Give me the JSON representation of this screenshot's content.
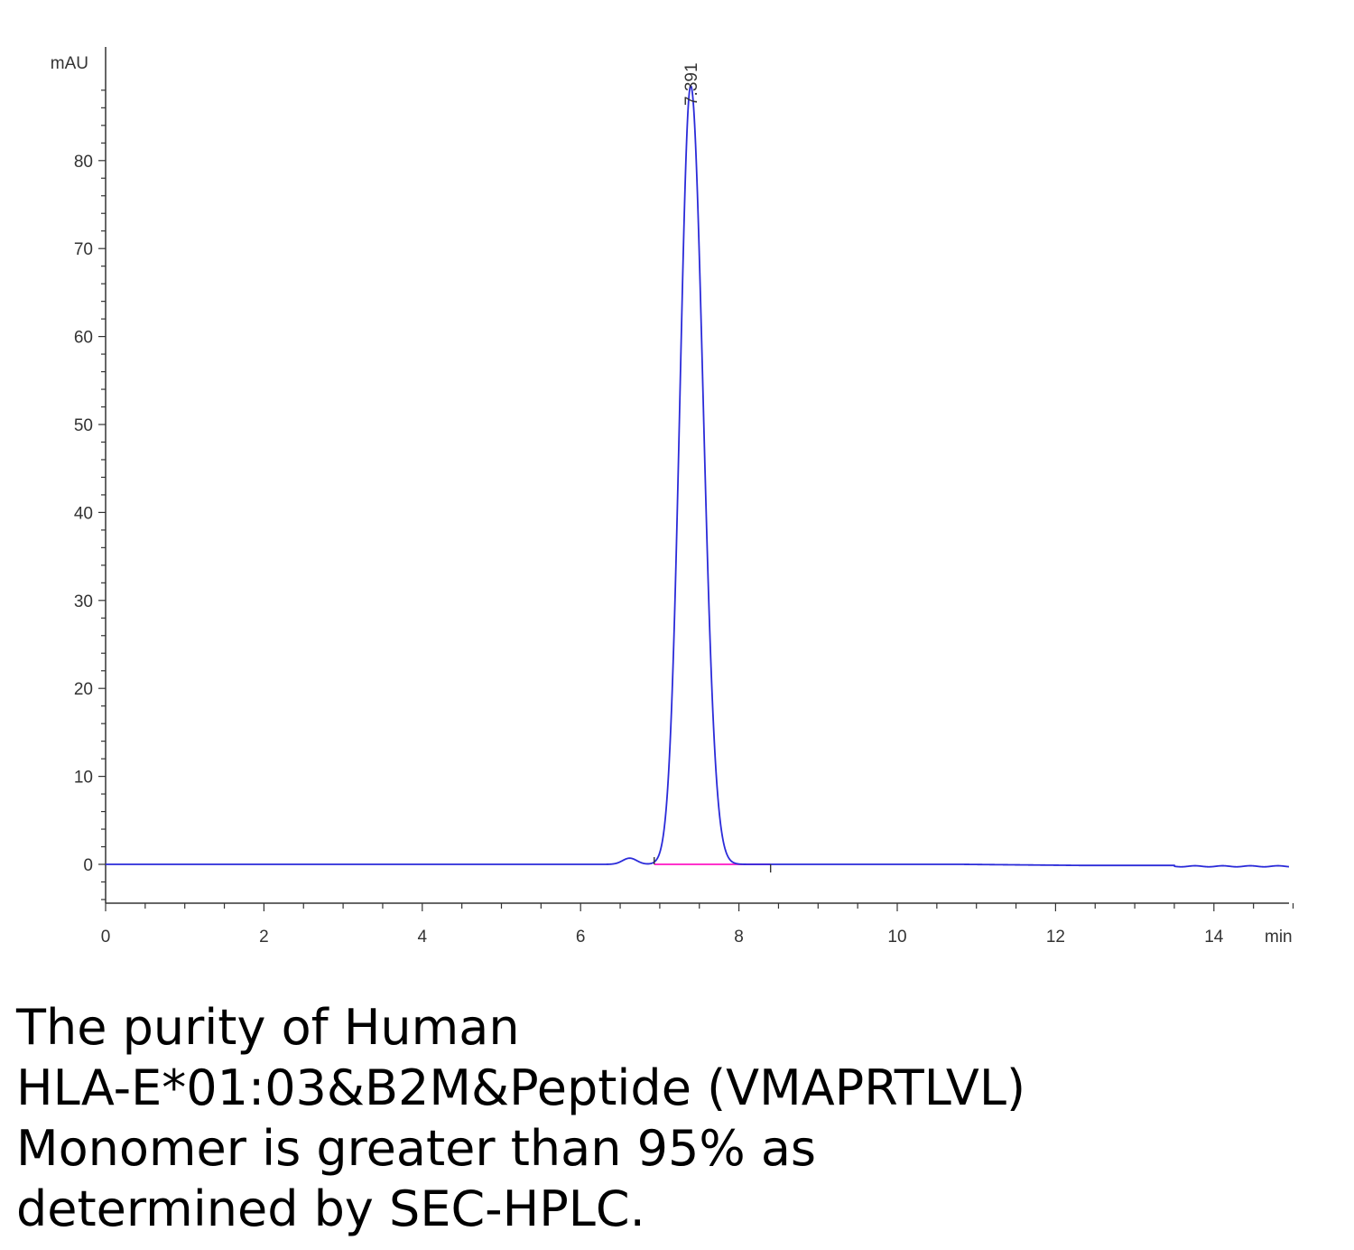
{
  "chart_data": {
    "type": "line",
    "y_unit_label": "mAU",
    "x_unit_label": "min",
    "xlim": [
      0,
      15
    ],
    "ylim": [
      -5,
      90
    ],
    "x_ticks": [
      0,
      2,
      4,
      6,
      8,
      10,
      12,
      14
    ],
    "y_ticks": [
      0,
      10,
      20,
      30,
      40,
      50,
      60,
      70,
      80
    ],
    "peak_label": "7.391",
    "peak": {
      "retention_time": 7.391,
      "height": 88.5
    },
    "minor_peak": {
      "retention_time": 6.62,
      "height": 0.7
    },
    "integration_baseline": {
      "x_start": 6.93,
      "x_end": 8.4,
      "y": 0.0
    },
    "series_color": "#2b2bd9",
    "baseline_color": "#ff33cc"
  },
  "caption": {
    "lines": [
      "The purity of Human",
      "HLA-E*01:03&B2M&Peptide (VMAPRTLVL)",
      "Monomer is greater than 95% as",
      "determined by SEC-HPLC."
    ]
  }
}
